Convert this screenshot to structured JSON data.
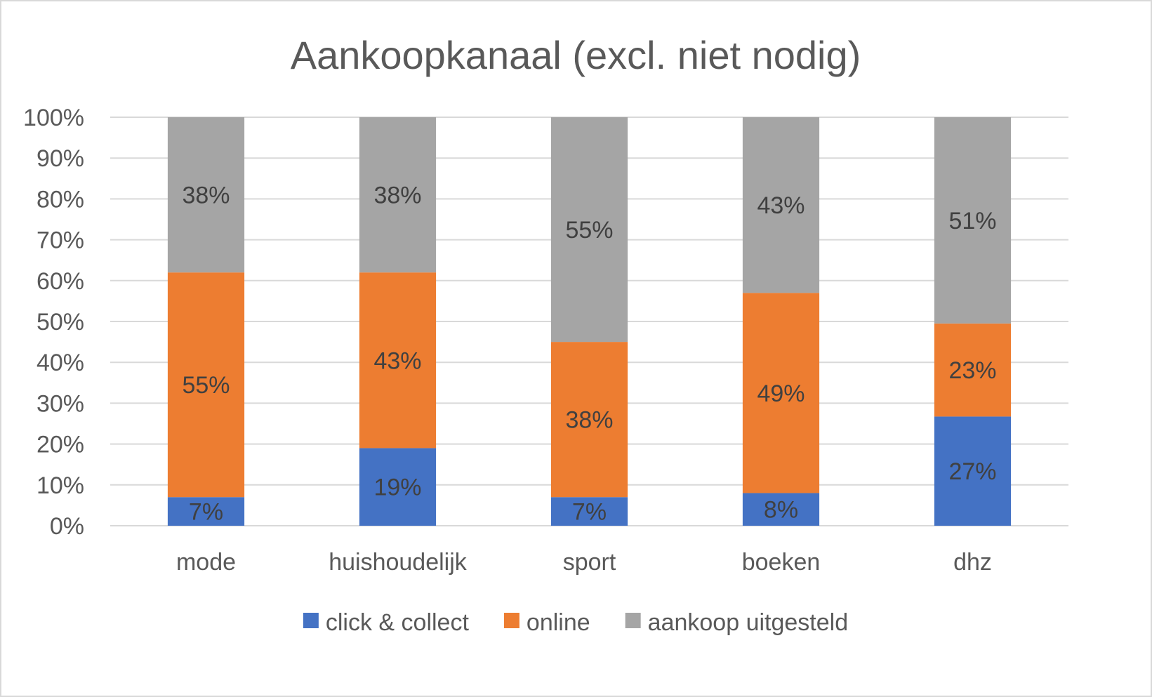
{
  "chart_data": {
    "type": "bar",
    "stacked": true,
    "percent": true,
    "title": "Aankoopkanaal (excl. niet nodig)",
    "categories": [
      "mode",
      "huishoudelijk",
      "sport",
      "boeken",
      "dhz"
    ],
    "series": [
      {
        "name": "click & collect",
        "color": "#4472C4",
        "values": [
          7,
          19,
          7,
          8,
          27
        ],
        "labels": [
          "7%",
          "19%",
          "7%",
          "8%",
          "27%"
        ]
      },
      {
        "name": "online",
        "color": "#ED7D31",
        "values": [
          55,
          43,
          38,
          49,
          23
        ],
        "labels": [
          "55%",
          "43%",
          "38%",
          "49%",
          "23%"
        ]
      },
      {
        "name": "aankoop uitgesteld",
        "color": "#A5A5A5",
        "values": [
          38,
          38,
          55,
          43,
          51
        ],
        "labels": [
          "38%",
          "38%",
          "55%",
          "43%",
          "51%"
        ]
      }
    ],
    "yticks": [
      "0%",
      "10%",
      "20%",
      "30%",
      "40%",
      "50%",
      "60%",
      "70%",
      "80%",
      "90%",
      "100%"
    ],
    "ylim": [
      0,
      100
    ],
    "grid": true,
    "legend": "bottom"
  }
}
